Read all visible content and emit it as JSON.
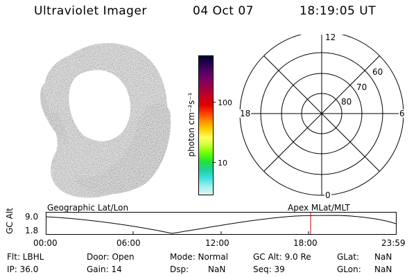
{
  "header": {
    "title": "Ultraviolet Imager",
    "date": "04 Oct 07",
    "time": "18:19:05 UT"
  },
  "colorbar": {
    "unit": "photon cm⁻²s⁻¹",
    "ticks": [
      {
        "label": "100",
        "value": 100
      },
      {
        "label": "10",
        "value": 10
      }
    ],
    "colors": [
      "#000033",
      "#2b0050",
      "#550066",
      "#800060",
      "#a00040",
      "#c80020",
      "#e00000",
      "#ff4000",
      "#ff9000",
      "#ffd000",
      "#ffff60",
      "#c8ff30",
      "#60ff00",
      "#20e040",
      "#20d0a0",
      "#40e0e0",
      "#a0f0f0",
      "#e0f4f4"
    ]
  },
  "polar": {
    "mlt_labels": {
      "top": "12",
      "left": "18",
      "right": "6",
      "bottom": "0"
    },
    "lat_labels": [
      "60",
      "70",
      "80"
    ]
  },
  "timeline": {
    "ylabel": "GC Alt",
    "ymax_label": "9.0",
    "ymin_label": "1.8",
    "left_caption": "Geographic Lat/Lon",
    "right_caption": "Apex MLat/MLT",
    "x_ticks": [
      "00:00",
      "06:00",
      "12:00",
      "18:00",
      "23:59"
    ],
    "marker_color": "#cc0000"
  },
  "footer": {
    "flt": "Flt: LBHL",
    "ip": "IP: 36.0",
    "door": "Door: Open",
    "gain": "Gain: 14",
    "mode": "Mode: Normal",
    "dsp": "Dsp:",
    "dsp_value": "NaN",
    "gcalt": "GC Alt: 9.0 Re",
    "seq": "Seq: 39",
    "glat": "GLat:",
    "glat_value": "NaN",
    "glon": "GLon:",
    "glon_value": "NaN"
  }
}
